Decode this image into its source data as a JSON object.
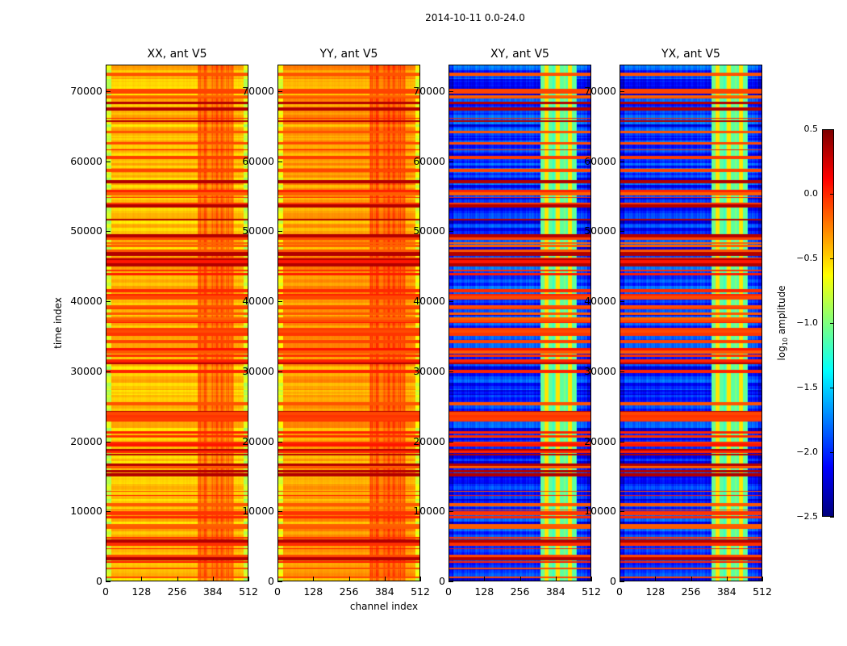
{
  "chart_data": {
    "type": "heatmap",
    "title": "2014-10-11 0.0-24.0",
    "xlabel": "channel index",
    "ylabel": "time index",
    "xlim": [
      0,
      512
    ],
    "ylim": [
      0,
      73800
    ],
    "xticks": [
      0,
      128,
      256,
      384,
      512
    ],
    "yticks": [
      0,
      10000,
      20000,
      30000,
      40000,
      50000,
      60000,
      70000
    ],
    "panels": [
      {
        "title": "XX, ant V5",
        "typical_log10_amplitude": -0.45,
        "rfi_band_channels": [
          330,
          460
        ],
        "rfi_band_log10_amplitude": -0.2
      },
      {
        "title": "YY, ant V5",
        "typical_log10_amplitude": -0.35,
        "rfi_band_channels": [
          330,
          460
        ],
        "rfi_band_log10_amplitude": -0.15
      },
      {
        "title": "XY, ant V5",
        "typical_log10_amplitude": -2.0,
        "rfi_band_channels": [
          330,
          460
        ],
        "rfi_band_log10_amplitude": -0.9
      },
      {
        "title": "YX, ant V5",
        "typical_log10_amplitude": -2.0,
        "rfi_band_channels": [
          330,
          460
        ],
        "rfi_band_log10_amplitude": -0.9
      }
    ],
    "colorbar": {
      "label": "log10 amplitude",
      "label_main": "log",
      "label_sub": "10",
      "label_rest": " amplitude",
      "range": [
        -2.5,
        0.5
      ],
      "ticks": [
        "0.5",
        "0.0",
        "−0.5",
        "−1.0",
        "−1.5",
        "−2.0",
        "−2.5"
      ],
      "tick_values": [
        0.5,
        0.0,
        -0.5,
        -1.0,
        -1.5,
        -2.0,
        -2.5
      ],
      "colormap": "jet"
    }
  }
}
